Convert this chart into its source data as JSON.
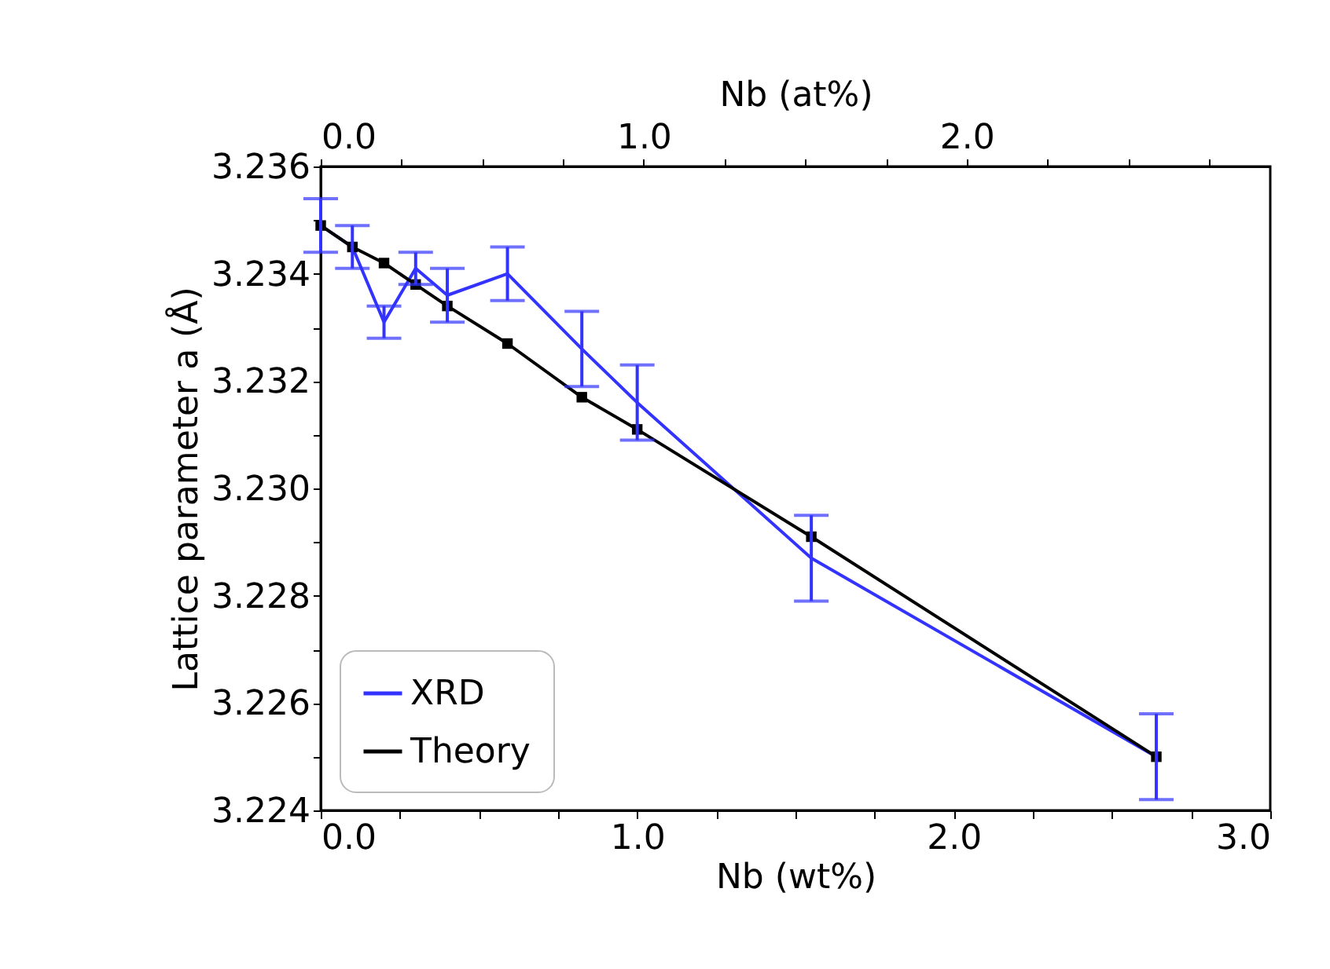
{
  "chart_data": {
    "type": "line",
    "xlabel": "Nb (wt%)",
    "ylabel": "Lattice parameter a (Å)",
    "x2label": "Nb (at%)",
    "x": [
      0.0,
      0.1,
      0.2,
      0.3,
      0.4,
      0.59,
      0.825,
      1.0,
      1.55,
      2.64
    ],
    "series": [
      {
        "name": "XRD",
        "color": "#3333ff",
        "marker": "none",
        "values": [
          3.2349,
          3.2345,
          3.2331,
          3.2341,
          3.2336,
          3.234,
          3.2326,
          3.2316,
          3.2287,
          3.225
        ],
        "errors": [
          0.0005,
          0.0004,
          0.0003,
          0.0003,
          0.0005,
          0.0005,
          0.0007,
          0.0007,
          0.0008,
          0.0008
        ]
      },
      {
        "name": "Theory",
        "color": "#000000",
        "marker": "square",
        "values": [
          3.2349,
          3.2345,
          3.2342,
          3.2338,
          3.2334,
          3.2327,
          3.2317,
          3.2311,
          3.2291,
          3.225
        ]
      }
    ],
    "xlim": [
      0,
      3.0
    ],
    "xticks": [
      {
        "value": 0,
        "label": "0.0"
      },
      {
        "value": 0.25,
        "label": null
      },
      {
        "value": 0.5,
        "label": null
      },
      {
        "value": 0.75,
        "label": null
      },
      {
        "value": 1,
        "label": "1.0"
      },
      {
        "value": 1.25,
        "label": null
      },
      {
        "value": 1.5,
        "label": null
      },
      {
        "value": 1.75,
        "label": null
      },
      {
        "value": 2,
        "label": "2.0"
      },
      {
        "value": 2.25,
        "label": null
      },
      {
        "value": 2.5,
        "label": null
      },
      {
        "value": 2.75,
        "label": null
      },
      {
        "value": 3,
        "label": "3.0"
      }
    ],
    "x2lim": [
      0,
      2.94
    ],
    "x2ticks": [
      {
        "value": 0,
        "label": "0.0"
      },
      {
        "value": 0.25,
        "label": null
      },
      {
        "value": 0.5,
        "label": null
      },
      {
        "value": 0.75,
        "label": null
      },
      {
        "value": 1,
        "label": "1.0"
      },
      {
        "value": 1.25,
        "label": null
      },
      {
        "value": 1.5,
        "label": null
      },
      {
        "value": 1.75,
        "label": null
      },
      {
        "value": 2,
        "label": "2.0"
      },
      {
        "value": 2.25,
        "label": null
      },
      {
        "value": 2.5,
        "label": null
      },
      {
        "value": 2.75,
        "label": null
      }
    ],
    "ylim": [
      3.224,
      3.236
    ],
    "yticks": [
      3.224,
      {
        "value": 3.225,
        "label": null
      },
      3.226,
      {
        "value": 3.227,
        "label": null
      },
      3.228,
      {
        "value": 3.229,
        "label": null
      },
      {
        "value": 3.23,
        "label": "3.230"
      },
      {
        "value": 3.231,
        "label": null
      },
      3.232,
      {
        "value": 3.233,
        "label": null
      },
      3.234,
      {
        "value": 3.235,
        "label": null
      },
      3.236
    ],
    "grid": false,
    "legend": "bottom left"
  }
}
